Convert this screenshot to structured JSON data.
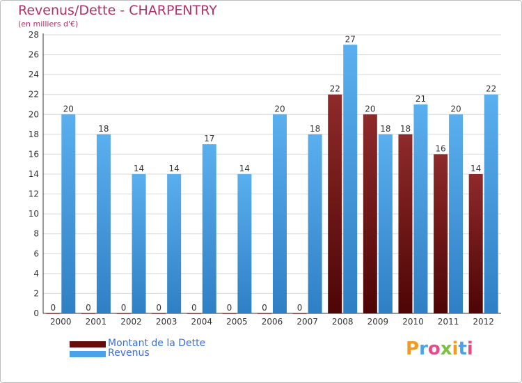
{
  "chart_data": {
    "type": "bar",
    "title": "Revenus/Dette - CHARPENTRY",
    "subtitle": "(en milliers d'€)",
    "categories": [
      "2000",
      "2001",
      "2002",
      "2003",
      "2004",
      "2005",
      "2006",
      "2007",
      "2008",
      "2009",
      "2010",
      "2011",
      "2012"
    ],
    "series": [
      {
        "name": "Montant de la Dette",
        "color": "#7a1a1a",
        "values": [
          0,
          0,
          0,
          0,
          0,
          0,
          0,
          0,
          22,
          20,
          18,
          16,
          14
        ]
      },
      {
        "name": "Revenus",
        "color": "#4aa3e6",
        "values": [
          20,
          18,
          14,
          14,
          17,
          14,
          20,
          18,
          27,
          18,
          21,
          20,
          22
        ]
      }
    ],
    "ylim": [
      0,
      28
    ],
    "yticks": [
      0,
      2,
      4,
      6,
      8,
      10,
      12,
      14,
      16,
      18,
      20,
      22,
      24,
      26,
      28
    ],
    "grid": true,
    "legend_position": "bottom-left"
  },
  "logo": {
    "text": "Proxiti"
  }
}
